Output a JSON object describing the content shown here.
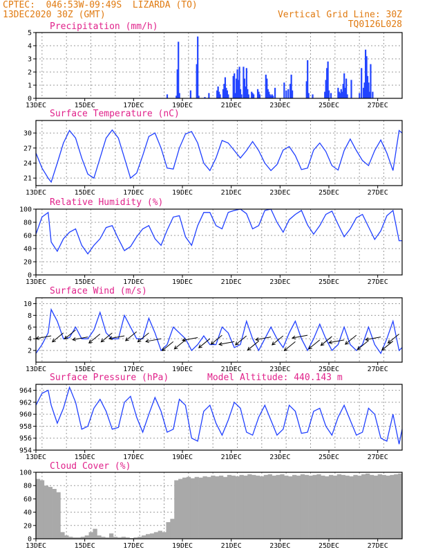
{
  "header": {
    "line1_left": "CPTEC:  046:53W-09:49S  LIZARDA (TO)",
    "line2_left": "13DEC2020 30Z (GMT)",
    "line1_right": "Vertical Grid Line: 30Z",
    "line2_right": "TQ0126L028"
  },
  "colors": {
    "series": "#1f3fff",
    "bars": "#2244ff",
    "cloud": "#a9a9a9",
    "title": "#e0218a",
    "header": "#e07a10"
  },
  "x_axis": {
    "labels": [
      "13DEC",
      "15DEC",
      "17DEC",
      "19DEC",
      "21DEC",
      "23DEC",
      "25DEC",
      "27DEC"
    ],
    "start_hour": 0,
    "end_hour": 360,
    "label_hours": [
      0,
      48,
      96,
      144,
      192,
      240,
      288,
      336
    ],
    "grid_hours": [
      6,
      30,
      54,
      78,
      102,
      126,
      150,
      174,
      198,
      222,
      246,
      270,
      294,
      318,
      342
    ]
  },
  "chart_data": [
    {
      "type": "bar",
      "title": "Precipitation (mm/h)",
      "ylim": [
        0,
        5
      ],
      "yticks": [
        "0",
        "1",
        "2",
        "3",
        "4",
        "5"
      ],
      "x": [
        129,
        138,
        139,
        140,
        141,
        152,
        158,
        159,
        160,
        166,
        170,
        178,
        179,
        180,
        181,
        184,
        185,
        186,
        187,
        188,
        189,
        194,
        195,
        196,
        197,
        198,
        199,
        200,
        201,
        202,
        204,
        205,
        206,
        207,
        208,
        209,
        212,
        213,
        214,
        218,
        219,
        220,
        226,
        227,
        228,
        229,
        230,
        231,
        232,
        233,
        235,
        244,
        246,
        248,
        250,
        251,
        252,
        266,
        267,
        268,
        272,
        284,
        285,
        286,
        287,
        288,
        290,
        297,
        298,
        299,
        300,
        301,
        302,
        303,
        304,
        305,
        306,
        310,
        318,
        320,
        322,
        323,
        324,
        325,
        326,
        327,
        328,
        329,
        331
      ],
      "values": [
        0.3,
        0.2,
        2.2,
        4.3,
        0.4,
        0.6,
        2.6,
        4.7,
        0.2,
        0.1,
        0.4,
        0.6,
        0.9,
        0.5,
        0.3,
        0.7,
        1.1,
        1.6,
        0.8,
        0.6,
        0.3,
        1.7,
        1.9,
        0.4,
        1.5,
        2.2,
        1.4,
        2.4,
        0.7,
        0.3,
        2.4,
        1.5,
        0.9,
        2.3,
        0.7,
        0.3,
        0.5,
        0.4,
        0.3,
        0.7,
        0.5,
        0.3,
        1.8,
        1.5,
        0.7,
        0.5,
        0.3,
        0.2,
        0.3,
        0.2,
        0.8,
        1.2,
        0.6,
        0.7,
        1.1,
        1.8,
        0.6,
        1.3,
        2.9,
        0.4,
        0.3,
        0.5,
        1.4,
        2.3,
        2.8,
        0.6,
        0.4,
        0.8,
        0.5,
        0.4,
        0.7,
        0.5,
        1.1,
        1.9,
        0.8,
        1.5,
        0.3,
        1.4,
        0.4,
        2.3,
        0.8,
        1.2,
        3.7,
        3.2,
        1.7,
        1.2,
        0.5,
        2.6,
        0.5
      ]
    },
    {
      "type": "line",
      "title": "Surface Temperature (nC)",
      "ylim": [
        19.5,
        32.5
      ],
      "yticks": [
        "21",
        "24",
        "27",
        "30"
      ],
      "x": [
        0,
        6,
        12,
        15,
        21,
        27,
        33,
        39,
        45,
        51,
        57,
        63,
        69,
        75,
        81,
        87,
        93,
        99,
        105,
        111,
        117,
        123,
        129,
        135,
        141,
        147,
        153,
        159,
        165,
        171,
        177,
        183,
        189,
        195,
        201,
        207,
        213,
        219,
        225,
        231,
        237,
        243,
        249,
        255,
        261,
        267,
        273,
        279,
        285,
        291,
        297,
        303,
        309,
        315,
        321,
        327,
        333,
        339,
        345,
        351,
        357,
        360
      ],
      "values": [
        26,
        23,
        21,
        20.2,
        24,
        28,
        30.5,
        29,
        25,
        21.8,
        21,
        25,
        29,
        30.6,
        29,
        25,
        21,
        22,
        25.5,
        29.3,
        30,
        27,
        23,
        22.8,
        27,
        29.8,
        30.3,
        28,
        24,
        22.5,
        25,
        28.5,
        28,
        26.5,
        25,
        26.5,
        28.3,
        26.5,
        24,
        22.5,
        23.7,
        26.6,
        27.3,
        25.5,
        22.7,
        23,
        26.6,
        28,
        26.3,
        23.5,
        22.6,
        26.5,
        28.8,
        26.5,
        24.5,
        23.5,
        26.5,
        28.6,
        26,
        22.5,
        30.5,
        30
      ]
    },
    {
      "type": "line",
      "title": "Relative Humidity (%)",
      "ylim": [
        0,
        100
      ],
      "yticks": [
        "0",
        "20",
        "40",
        "60",
        "80",
        "100"
      ],
      "x": [
        0,
        6,
        12,
        15,
        21,
        27,
        33,
        39,
        45,
        51,
        57,
        63,
        69,
        75,
        81,
        87,
        93,
        99,
        105,
        111,
        117,
        123,
        129,
        135,
        141,
        147,
        153,
        159,
        165,
        171,
        177,
        183,
        189,
        195,
        201,
        207,
        213,
        219,
        225,
        231,
        237,
        243,
        249,
        255,
        261,
        267,
        273,
        279,
        285,
        291,
        297,
        303,
        309,
        315,
        321,
        327,
        333,
        339,
        345,
        351,
        357,
        360
      ],
      "values": [
        62,
        88,
        95,
        50,
        36,
        55,
        65,
        70,
        45,
        32,
        45,
        55,
        72,
        75,
        55,
        37,
        43,
        58,
        70,
        75,
        55,
        45,
        68,
        88,
        90,
        58,
        45,
        75,
        95,
        95,
        75,
        70,
        95,
        98,
        100,
        93,
        70,
        75,
        98,
        100,
        80,
        65,
        84,
        92,
        98,
        76,
        62,
        75,
        92,
        97,
        77,
        58,
        70,
        87,
        92,
        73,
        54,
        67,
        90,
        98,
        52,
        52
      ]
    },
    {
      "type": "line",
      "title": "Surface Wind (m/s)",
      "ylim": [
        0,
        11
      ],
      "yticks": [
        "2",
        "4",
        "6",
        "8",
        "10"
      ],
      "x": [
        0,
        6,
        12,
        15,
        21,
        27,
        33,
        39,
        45,
        51,
        57,
        63,
        69,
        75,
        81,
        87,
        93,
        99,
        105,
        111,
        117,
        123,
        129,
        135,
        141,
        147,
        153,
        159,
        165,
        171,
        177,
        183,
        189,
        195,
        201,
        207,
        213,
        219,
        225,
        231,
        237,
        243,
        249,
        255,
        261,
        267,
        273,
        279,
        285,
        291,
        297,
        303,
        309,
        315,
        321,
        327,
        333,
        339,
        345,
        351,
        357,
        360
      ],
      "values": [
        1.5,
        3,
        5,
        9,
        7,
        4,
        4.2,
        6,
        4,
        4,
        5.5,
        8.5,
        5,
        4,
        4,
        8,
        6,
        4,
        4,
        7.5,
        5,
        2,
        3,
        6,
        5,
        4,
        2,
        3,
        4.5,
        3,
        3,
        6,
        5,
        2.5,
        3,
        7,
        4,
        2,
        4,
        6,
        4,
        2.5,
        5,
        7,
        4,
        2,
        4,
        6.5,
        4,
        2,
        3,
        6,
        3,
        2,
        3,
        6,
        3,
        1.5,
        4,
        7,
        2,
        2.5
      ],
      "arrows": [
        [
          15,
          4.5
        ],
        [
          27,
          5
        ],
        [
          39,
          5.5
        ],
        [
          51,
          4.3
        ],
        [
          63,
          4.8
        ],
        [
          75,
          5
        ],
        [
          87,
          4.5
        ],
        [
          99,
          5.2
        ],
        [
          111,
          5
        ],
        [
          123,
          4
        ],
        [
          135,
          3.5
        ],
        [
          147,
          3.8
        ],
        [
          159,
          4.2
        ],
        [
          171,
          4
        ],
        [
          183,
          4.6
        ],
        [
          195,
          3.5
        ],
        [
          207,
          4.5
        ],
        [
          219,
          3.6
        ],
        [
          231,
          4.3
        ],
        [
          243,
          4.5
        ],
        [
          255,
          3.5
        ],
        [
          267,
          4.6
        ],
        [
          279,
          3.8
        ],
        [
          291,
          4.4
        ],
        [
          303,
          3.8
        ],
        [
          315,
          4.6
        ],
        [
          327,
          3.7
        ],
        [
          339,
          4.3
        ],
        [
          351,
          3.6
        ],
        [
          357,
          4.8
        ]
      ]
    },
    {
      "type": "line",
      "title": "Surface Pressure (hPa)",
      "ylim": [
        954,
        965
      ],
      "yticks": [
        "954",
        "956",
        "958",
        "960",
        "962",
        "964"
      ],
      "x": [
        0,
        6,
        12,
        15,
        21,
        27,
        33,
        39,
        45,
        51,
        57,
        63,
        69,
        75,
        81,
        87,
        93,
        99,
        105,
        111,
        117,
        123,
        129,
        135,
        141,
        147,
        153,
        159,
        165,
        171,
        177,
        183,
        189,
        195,
        201,
        207,
        213,
        219,
        225,
        231,
        237,
        243,
        249,
        255,
        261,
        267,
        273,
        279,
        285,
        291,
        297,
        303,
        309,
        315,
        321,
        327,
        333,
        339,
        345,
        351,
        357,
        360
      ],
      "values": [
        961.5,
        963.5,
        964,
        961.5,
        958.5,
        961,
        964.5,
        962,
        957.5,
        958,
        961,
        962.5,
        960.5,
        957.5,
        957.8,
        962,
        963,
        959.5,
        957,
        960,
        962.8,
        960.5,
        957,
        957.5,
        962.5,
        961.5,
        956,
        955.5,
        960.5,
        961.5,
        958.5,
        956.5,
        959,
        962,
        961,
        957,
        956.5,
        959.5,
        961.5,
        959,
        956.5,
        957.5,
        961.5,
        960.5,
        956.8,
        957,
        960.5,
        961,
        958,
        956.5,
        959.5,
        961.5,
        959,
        956.5,
        957,
        961,
        960,
        956,
        955.5,
        960,
        955,
        957.5
      ]
    },
    {
      "type": "bar",
      "title": "Cloud Cover (%)",
      "ylim": [
        0,
        100
      ],
      "yticks": [
        "0",
        "20",
        "40",
        "60",
        "80",
        "100"
      ],
      "values": [
        90,
        88,
        80,
        78,
        75,
        70,
        10,
        5,
        3,
        2,
        2,
        3,
        5,
        10,
        15,
        5,
        3,
        2,
        8,
        3,
        2,
        3,
        2,
        1,
        2,
        3,
        5,
        7,
        8,
        10,
        12,
        10,
        25,
        30,
        88,
        90,
        92,
        93,
        91,
        93,
        92,
        94,
        93,
        95,
        94,
        95,
        93,
        96,
        95,
        94,
        96,
        95,
        97,
        96,
        95,
        94,
        96,
        97,
        95,
        96,
        97,
        95,
        94,
        96,
        95,
        97,
        96,
        95,
        96,
        97,
        95,
        94,
        96,
        95,
        97,
        96,
        95,
        94,
        96,
        95,
        97,
        98,
        96,
        95,
        97,
        96,
        95,
        96,
        97,
        98
      ]
    }
  ],
  "wind_title": "Surface Wind (m/s)",
  "pressure_extra": "Model Altitude: 440.143 m"
}
